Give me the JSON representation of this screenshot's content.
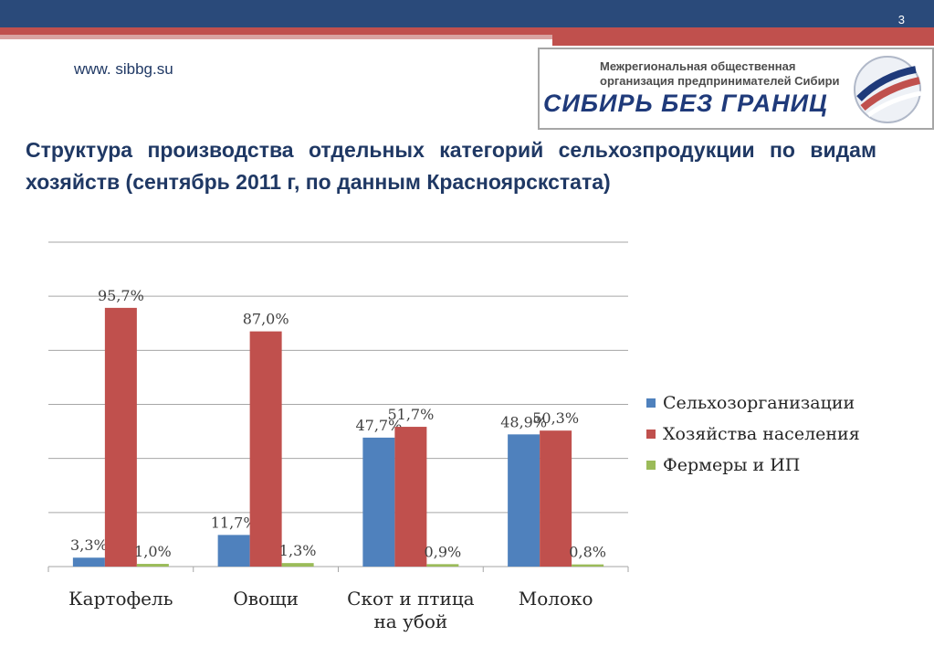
{
  "header": {
    "page_number": "3",
    "site": "www. sibbg.su"
  },
  "logo": {
    "line1": "Межрегиональная общественная",
    "line2": "организация предпринимателей Сибири",
    "name": "СИБИРЬ БЕЗ ГРАНИЦ"
  },
  "title": "Структура производства отдельных категорий сельхозпродукции по видам хозяйств (сентябрь 2011 г, по данным Красноярскстата)",
  "colors": {
    "series1": "#4f81bd",
    "series2": "#c0504d",
    "series3": "#9bbb59",
    "title": "#1f3864"
  },
  "chart_data": {
    "type": "bar",
    "categories": [
      [
        "Картофель"
      ],
      [
        "Овощи"
      ],
      [
        "Скот и птица",
        "на убой"
      ],
      [
        "Молоко"
      ]
    ],
    "series": [
      {
        "name": "Сельхозорганизации",
        "values": [
          3.3,
          11.7,
          47.7,
          48.9
        ],
        "labels": [
          "3,3%",
          "11,7%",
          "47,7%",
          "48,9%"
        ],
        "color": "#4f81bd"
      },
      {
        "name": "Хозяйства населения",
        "values": [
          95.7,
          87.0,
          51.7,
          50.3
        ],
        "labels": [
          "95,7%",
          "87,0%",
          "51,7%",
          "50,3%"
        ],
        "color": "#c0504d"
      },
      {
        "name": "Фермеры и ИП",
        "values": [
          1.0,
          1.3,
          0.9,
          0.8
        ],
        "labels": [
          "1,0%",
          "1,3%",
          "0,9%",
          "0,8%"
        ],
        "color": "#9bbb59"
      }
    ],
    "ylim": [
      0,
      120
    ],
    "grid": true,
    "legend": "right"
  }
}
